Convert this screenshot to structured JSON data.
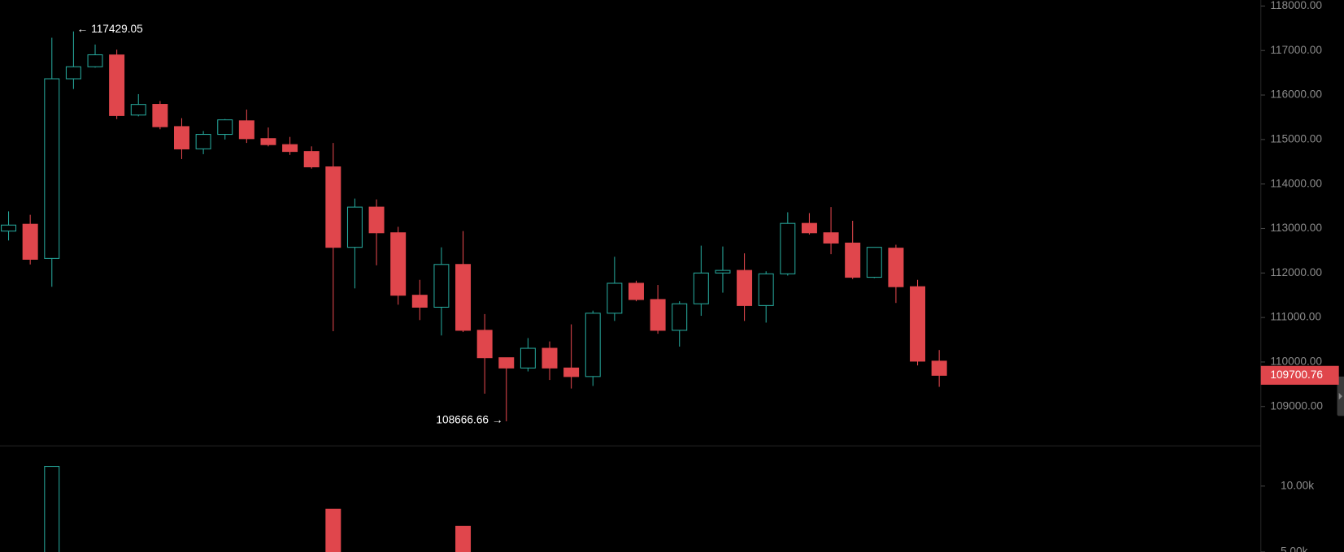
{
  "chart_data": {
    "type": "candlestick",
    "open": [
      112942,
      113096,
      112327,
      116365,
      116635,
      116900,
      115550,
      115790,
      115290,
      114790,
      115115,
      115420,
      115020,
      114885,
      114730,
      114385,
      112577,
      113481,
      112904,
      111500,
      111231,
      112192,
      110712,
      110096,
      109865,
      110308,
      109865,
      109673,
      111096,
      111769,
      111404,
      110712,
      111308,
      112000,
      112058,
      111269,
      111981,
      113115,
      112904,
      112673,
      111904,
      112558,
      111692,
      110019
    ],
    "high": [
      113385,
      113308,
      117288,
      117429.05,
      117135,
      117020,
      116020,
      115865,
      115480,
      115190,
      115460,
      115673,
      115270,
      115058,
      114846,
      114923,
      113673,
      113654,
      113038,
      111846,
      112577,
      112942,
      111077,
      110096,
      110538,
      110462,
      110846,
      111154,
      112365,
      111827,
      111731,
      111365,
      112615,
      112596,
      112442,
      112038,
      113365,
      113346,
      113481,
      113173,
      112577,
      112635,
      111846,
      110269
    ],
    "low": [
      112731,
      112192,
      111692,
      116135,
      116615,
      115460,
      115520,
      115230,
      114560,
      114670,
      115000,
      114923,
      114846,
      114654,
      114346,
      110692,
      111654,
      112173,
      111288,
      110942,
      110596,
      110673,
      109288,
      108666.66,
      109788,
      109596,
      109404,
      109462,
      110923,
      111365,
      110635,
      110346,
      111038,
      111558,
      110923,
      110885,
      111942,
      112865,
      112423,
      111865,
      111885,
      111327,
      109923,
      109442
    ],
    "close": [
      113077,
      112308,
      116365,
      116635,
      116904,
      115538,
      115788,
      115288,
      114788,
      115115,
      115442,
      115019,
      114885,
      114731,
      114385,
      112577,
      113481,
      112904,
      111500,
      111231,
      112192,
      110712,
      110096,
      109865,
      110308,
      109865,
      109673,
      111096,
      111769,
      111404,
      110712,
      111308,
      112000,
      112058,
      111269,
      111981,
      113115,
      112904,
      112673,
      111904,
      112577,
      111692,
      110019,
      109700.76
    ],
    "volume": [
      null,
      null,
      11494,
      null,
      null,
      null,
      null,
      null,
      null,
      null,
      null,
      null,
      null,
      null,
      null,
      8247,
      null,
      null,
      null,
      null,
      null,
      6948,
      null,
      null,
      null,
      null,
      null,
      null,
      null,
      null,
      null,
      null,
      null,
      null,
      null,
      null,
      null,
      null,
      null,
      null,
      null,
      null,
      null,
      null
    ],
    "up_color": "#26a69a",
    "down_color": "#e0464c",
    "ylim": [
      108115,
      118135
    ],
    "yticks": [
      {
        "value": 109000,
        "label": "109000.00"
      },
      {
        "value": 110000,
        "label": "110000.00"
      },
      {
        "value": 111000,
        "label": "111000.00"
      },
      {
        "value": 112000,
        "label": "112000.00"
      },
      {
        "value": 113000,
        "label": "113000.00"
      },
      {
        "value": 114000,
        "label": "114000.00"
      },
      {
        "value": 115000,
        "label": "115000.00"
      },
      {
        "value": 116000,
        "label": "116000.00"
      },
      {
        "value": 117000,
        "label": "117000.00"
      },
      {
        "value": 118000,
        "label": "118000.00"
      }
    ],
    "volume_ylim": [
      5000,
      13052
    ],
    "volume_yticks": [
      {
        "value": 5000,
        "label": "5.00k"
      },
      {
        "value": 10000,
        "label": "10.00k"
      }
    ],
    "high_label": {
      "value": 117429.05,
      "label": "← 117429.05"
    },
    "low_label": {
      "value": 108666.66,
      "label": "108666.66 →"
    },
    "last_price": {
      "value": 109700.76,
      "label": "109700.76"
    }
  }
}
